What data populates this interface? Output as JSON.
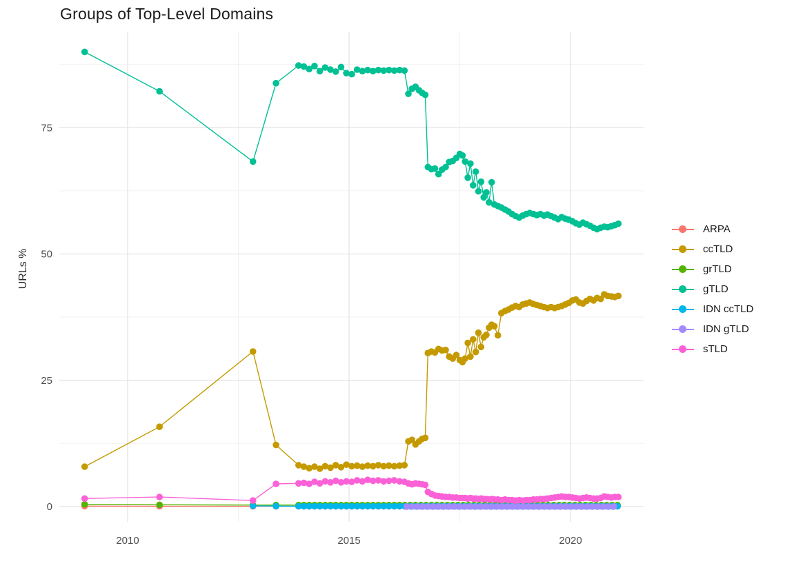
{
  "chart_data": {
    "type": "line",
    "title": "Groups of Top-Level Domains",
    "xlabel": "",
    "ylabel": "URLs %",
    "x_ticks": [
      2010,
      2015,
      2020
    ],
    "x_minor": [
      2012.5,
      2017.5
    ],
    "y_ticks": [
      0,
      25,
      50,
      75
    ],
    "y_minor": [
      12.5,
      37.5,
      62.5,
      87.5
    ],
    "x_range": [
      2008.5,
      2021.6
    ],
    "y_range": [
      -3,
      94
    ],
    "grid": true,
    "legend_position": "right",
    "series": [
      {
        "name": "ARPA",
        "color": "#F8766D",
        "points": [
          [
            2009.03,
            0.1
          ],
          [
            2010.72,
            0.07
          ],
          [
            2012.83,
            0.06
          ],
          [
            2013.35,
            0.05
          ]
        ],
        "flat": {
          "from": 2013.86,
          "to": 2021.08,
          "step": 0.12,
          "value": 0.05
        }
      },
      {
        "name": "ccTLD",
        "color": "#C49A00",
        "points": [
          [
            2009.03,
            7.9
          ],
          [
            2010.72,
            15.8
          ],
          [
            2012.83,
            30.7
          ],
          [
            2013.35,
            12.2
          ],
          [
            2013.86,
            8.2
          ],
          [
            2013.98,
            7.9
          ],
          [
            2014.1,
            7.6
          ],
          [
            2014.22,
            7.9
          ],
          [
            2014.34,
            7.5
          ],
          [
            2014.46,
            8.0
          ],
          [
            2014.58,
            7.7
          ],
          [
            2014.7,
            8.2
          ],
          [
            2014.82,
            7.8
          ],
          [
            2014.94,
            8.3
          ],
          [
            2015.06,
            8.0
          ],
          [
            2015.18,
            8.1
          ],
          [
            2015.3,
            7.9
          ],
          [
            2015.42,
            8.1
          ],
          [
            2015.54,
            8.0
          ],
          [
            2015.66,
            8.2
          ],
          [
            2015.78,
            8.0
          ],
          [
            2015.9,
            8.1
          ],
          [
            2016.02,
            8.0
          ],
          [
            2016.14,
            8.1
          ],
          [
            2016.25,
            8.2
          ],
          [
            2016.34,
            12.9
          ],
          [
            2016.42,
            13.2
          ],
          [
            2016.5,
            12.3
          ],
          [
            2016.58,
            12.9
          ],
          [
            2016.65,
            13.4
          ],
          [
            2016.72,
            13.6
          ],
          [
            2016.78,
            30.4
          ],
          [
            2016.86,
            30.7
          ],
          [
            2016.94,
            30.5
          ],
          [
            2017.02,
            31.2
          ],
          [
            2017.1,
            30.9
          ],
          [
            2017.18,
            31.0
          ],
          [
            2017.26,
            29.7
          ],
          [
            2017.34,
            29.3
          ],
          [
            2017.42,
            30.0
          ],
          [
            2017.5,
            29.0
          ],
          [
            2017.56,
            28.6
          ],
          [
            2017.62,
            29.3
          ],
          [
            2017.68,
            32.4
          ],
          [
            2017.74,
            29.7
          ],
          [
            2017.8,
            33.1
          ],
          [
            2017.86,
            30.6
          ],
          [
            2017.92,
            34.4
          ],
          [
            2017.98,
            31.6
          ],
          [
            2018.04,
            33.5
          ],
          [
            2018.1,
            34.0
          ],
          [
            2018.16,
            35.4
          ],
          [
            2018.22,
            36.0
          ],
          [
            2018.28,
            35.7
          ],
          [
            2018.36,
            33.9
          ],
          [
            2018.44,
            38.3
          ],
          [
            2018.52,
            38.7
          ],
          [
            2018.6,
            39.0
          ],
          [
            2018.68,
            39.4
          ],
          [
            2018.76,
            39.7
          ],
          [
            2018.84,
            39.5
          ],
          [
            2018.92,
            40.0
          ],
          [
            2019.0,
            40.2
          ],
          [
            2019.08,
            40.4
          ],
          [
            2019.16,
            40.1
          ],
          [
            2019.24,
            39.9
          ],
          [
            2019.32,
            39.7
          ],
          [
            2019.4,
            39.5
          ],
          [
            2019.48,
            39.3
          ],
          [
            2019.56,
            39.5
          ],
          [
            2019.64,
            39.3
          ],
          [
            2019.72,
            39.5
          ],
          [
            2019.8,
            39.7
          ],
          [
            2019.88,
            40.0
          ],
          [
            2019.96,
            40.3
          ],
          [
            2020.04,
            40.8
          ],
          [
            2020.12,
            41.0
          ],
          [
            2020.2,
            40.4
          ],
          [
            2020.28,
            40.2
          ],
          [
            2020.36,
            40.7
          ],
          [
            2020.44,
            41.1
          ],
          [
            2020.52,
            40.8
          ],
          [
            2020.6,
            41.3
          ],
          [
            2020.68,
            41.1
          ],
          [
            2020.76,
            42.0
          ],
          [
            2020.84,
            41.7
          ],
          [
            2020.92,
            41.6
          ],
          [
            2021.0,
            41.5
          ],
          [
            2021.08,
            41.7
          ]
        ]
      },
      {
        "name": "grTLD",
        "color": "#53B400",
        "points": [
          [
            2009.03,
            0.45
          ],
          [
            2010.72,
            0.35
          ],
          [
            2012.83,
            0.3
          ],
          [
            2013.35,
            0.3
          ]
        ],
        "flat": {
          "from": 2013.86,
          "to": 2021.08,
          "step": 0.12,
          "value": 0.3
        }
      },
      {
        "name": "gTLD",
        "color": "#00C094",
        "points": [
          [
            2009.03,
            90.0
          ],
          [
            2010.72,
            82.2
          ],
          [
            2012.83,
            68.3
          ],
          [
            2013.35,
            83.8
          ],
          [
            2013.86,
            87.3
          ],
          [
            2013.98,
            87.1
          ],
          [
            2014.1,
            86.6
          ],
          [
            2014.22,
            87.2
          ],
          [
            2014.34,
            86.2
          ],
          [
            2014.46,
            86.9
          ],
          [
            2014.58,
            86.5
          ],
          [
            2014.7,
            86.1
          ],
          [
            2014.82,
            87.0
          ],
          [
            2014.94,
            85.8
          ],
          [
            2015.06,
            85.6
          ],
          [
            2015.18,
            86.5
          ],
          [
            2015.3,
            86.2
          ],
          [
            2015.42,
            86.4
          ],
          [
            2015.54,
            86.2
          ],
          [
            2015.66,
            86.4
          ],
          [
            2015.78,
            86.3
          ],
          [
            2015.9,
            86.4
          ],
          [
            2016.02,
            86.3
          ],
          [
            2016.14,
            86.4
          ],
          [
            2016.25,
            86.3
          ],
          [
            2016.34,
            81.7
          ],
          [
            2016.42,
            82.7
          ],
          [
            2016.5,
            83.1
          ],
          [
            2016.58,
            82.4
          ],
          [
            2016.65,
            81.9
          ],
          [
            2016.72,
            81.5
          ],
          [
            2016.78,
            67.2
          ],
          [
            2016.86,
            66.8
          ],
          [
            2016.94,
            66.9
          ],
          [
            2017.02,
            65.8
          ],
          [
            2017.1,
            66.7
          ],
          [
            2017.18,
            67.2
          ],
          [
            2017.26,
            68.2
          ],
          [
            2017.34,
            68.4
          ],
          [
            2017.42,
            69.0
          ],
          [
            2017.5,
            69.8
          ],
          [
            2017.56,
            69.5
          ],
          [
            2017.62,
            68.3
          ],
          [
            2017.68,
            65.1
          ],
          [
            2017.74,
            67.9
          ],
          [
            2017.8,
            63.6
          ],
          [
            2017.86,
            66.3
          ],
          [
            2017.92,
            62.4
          ],
          [
            2017.98,
            64.3
          ],
          [
            2018.04,
            61.2
          ],
          [
            2018.1,
            62.2
          ],
          [
            2018.16,
            60.2
          ],
          [
            2018.22,
            64.2
          ],
          [
            2018.28,
            59.8
          ],
          [
            2018.36,
            59.5
          ],
          [
            2018.44,
            59.2
          ],
          [
            2018.52,
            58.8
          ],
          [
            2018.6,
            58.4
          ],
          [
            2018.68,
            57.9
          ],
          [
            2018.76,
            57.5
          ],
          [
            2018.84,
            57.2
          ],
          [
            2018.92,
            57.6
          ],
          [
            2019.0,
            57.9
          ],
          [
            2019.08,
            58.1
          ],
          [
            2019.16,
            57.9
          ],
          [
            2019.24,
            57.7
          ],
          [
            2019.32,
            57.9
          ],
          [
            2019.4,
            57.6
          ],
          [
            2019.48,
            57.8
          ],
          [
            2019.56,
            57.5
          ],
          [
            2019.64,
            57.2
          ],
          [
            2019.72,
            56.9
          ],
          [
            2019.8,
            57.3
          ],
          [
            2019.88,
            57.0
          ],
          [
            2019.96,
            56.8
          ],
          [
            2020.04,
            56.5
          ],
          [
            2020.12,
            56.1
          ],
          [
            2020.2,
            55.8
          ],
          [
            2020.28,
            56.2
          ],
          [
            2020.36,
            55.9
          ],
          [
            2020.44,
            55.6
          ],
          [
            2020.52,
            55.2
          ],
          [
            2020.6,
            54.9
          ],
          [
            2020.68,
            55.2
          ],
          [
            2020.76,
            55.4
          ],
          [
            2020.84,
            55.3
          ],
          [
            2020.92,
            55.5
          ],
          [
            2021.0,
            55.7
          ],
          [
            2021.08,
            56.0
          ]
        ]
      },
      {
        "name": "IDN ccTLD",
        "color": "#00B6EB",
        "points": [
          [
            2012.83,
            0.15
          ],
          [
            2013.35,
            0.1
          ]
        ],
        "flat": {
          "from": 2013.86,
          "to": 2021.08,
          "step": 0.12,
          "value": 0.07
        }
      },
      {
        "name": "IDN gTLD",
        "color": "#A58AFF",
        "points": [],
        "flat": {
          "from": 2016.3,
          "to": 2021.08,
          "step": 0.12,
          "value": 0.02
        }
      },
      {
        "name": "sTLD",
        "color": "#FB61D7",
        "points": [
          [
            2009.03,
            1.6
          ],
          [
            2010.72,
            1.9
          ],
          [
            2012.83,
            1.2
          ],
          [
            2013.35,
            4.5
          ],
          [
            2013.86,
            4.6
          ],
          [
            2013.98,
            4.7
          ],
          [
            2014.1,
            4.5
          ],
          [
            2014.22,
            4.9
          ],
          [
            2014.34,
            4.6
          ],
          [
            2014.46,
            5.0
          ],
          [
            2014.58,
            4.8
          ],
          [
            2014.7,
            5.1
          ],
          [
            2014.82,
            4.8
          ],
          [
            2014.94,
            5.0
          ],
          [
            2015.06,
            4.9
          ],
          [
            2015.18,
            5.2
          ],
          [
            2015.3,
            5.0
          ],
          [
            2015.42,
            5.3
          ],
          [
            2015.54,
            5.1
          ],
          [
            2015.66,
            5.2
          ],
          [
            2015.78,
            5.0
          ],
          [
            2015.9,
            5.1
          ],
          [
            2016.02,
            5.2
          ],
          [
            2016.14,
            5.0
          ],
          [
            2016.25,
            4.9
          ],
          [
            2016.34,
            4.6
          ],
          [
            2016.42,
            4.4
          ],
          [
            2016.5,
            4.6
          ],
          [
            2016.58,
            4.5
          ],
          [
            2016.65,
            4.4
          ],
          [
            2016.72,
            4.3
          ],
          [
            2016.78,
            2.9
          ],
          [
            2016.86,
            2.5
          ],
          [
            2016.94,
            2.2
          ],
          [
            2017.02,
            2.1
          ],
          [
            2017.1,
            2.0
          ],
          [
            2017.18,
            1.9
          ],
          [
            2017.26,
            1.9
          ],
          [
            2017.34,
            1.8
          ],
          [
            2017.42,
            1.8
          ],
          [
            2017.5,
            1.7
          ],
          [
            2017.56,
            1.7
          ],
          [
            2017.62,
            1.7
          ],
          [
            2017.68,
            1.6
          ],
          [
            2017.74,
            1.7
          ],
          [
            2017.8,
            1.6
          ],
          [
            2017.86,
            1.6
          ],
          [
            2017.92,
            1.5
          ],
          [
            2017.98,
            1.6
          ],
          [
            2018.04,
            1.5
          ],
          [
            2018.1,
            1.5
          ],
          [
            2018.16,
            1.4
          ],
          [
            2018.22,
            1.5
          ],
          [
            2018.28,
            1.4
          ],
          [
            2018.36,
            1.4
          ],
          [
            2018.44,
            1.3
          ],
          [
            2018.52,
            1.4
          ],
          [
            2018.6,
            1.3
          ],
          [
            2018.68,
            1.3
          ],
          [
            2018.76,
            1.2
          ],
          [
            2018.84,
            1.3
          ],
          [
            2018.92,
            1.2
          ],
          [
            2019.0,
            1.3
          ],
          [
            2019.08,
            1.3
          ],
          [
            2019.16,
            1.4
          ],
          [
            2019.24,
            1.4
          ],
          [
            2019.32,
            1.5
          ],
          [
            2019.4,
            1.5
          ],
          [
            2019.48,
            1.6
          ],
          [
            2019.56,
            1.7
          ],
          [
            2019.64,
            1.8
          ],
          [
            2019.72,
            1.9
          ],
          [
            2019.8,
            2.0
          ],
          [
            2019.88,
            1.9
          ],
          [
            2019.96,
            1.9
          ],
          [
            2020.04,
            1.8
          ],
          [
            2020.12,
            1.7
          ],
          [
            2020.2,
            1.6
          ],
          [
            2020.28,
            1.7
          ],
          [
            2020.36,
            1.8
          ],
          [
            2020.44,
            1.7
          ],
          [
            2020.52,
            1.6
          ],
          [
            2020.6,
            1.6
          ],
          [
            2020.68,
            1.7
          ],
          [
            2020.76,
            2.0
          ],
          [
            2020.84,
            1.9
          ],
          [
            2020.92,
            1.8
          ],
          [
            2021.0,
            1.9
          ],
          [
            2021.08,
            1.9
          ]
        ]
      }
    ]
  }
}
